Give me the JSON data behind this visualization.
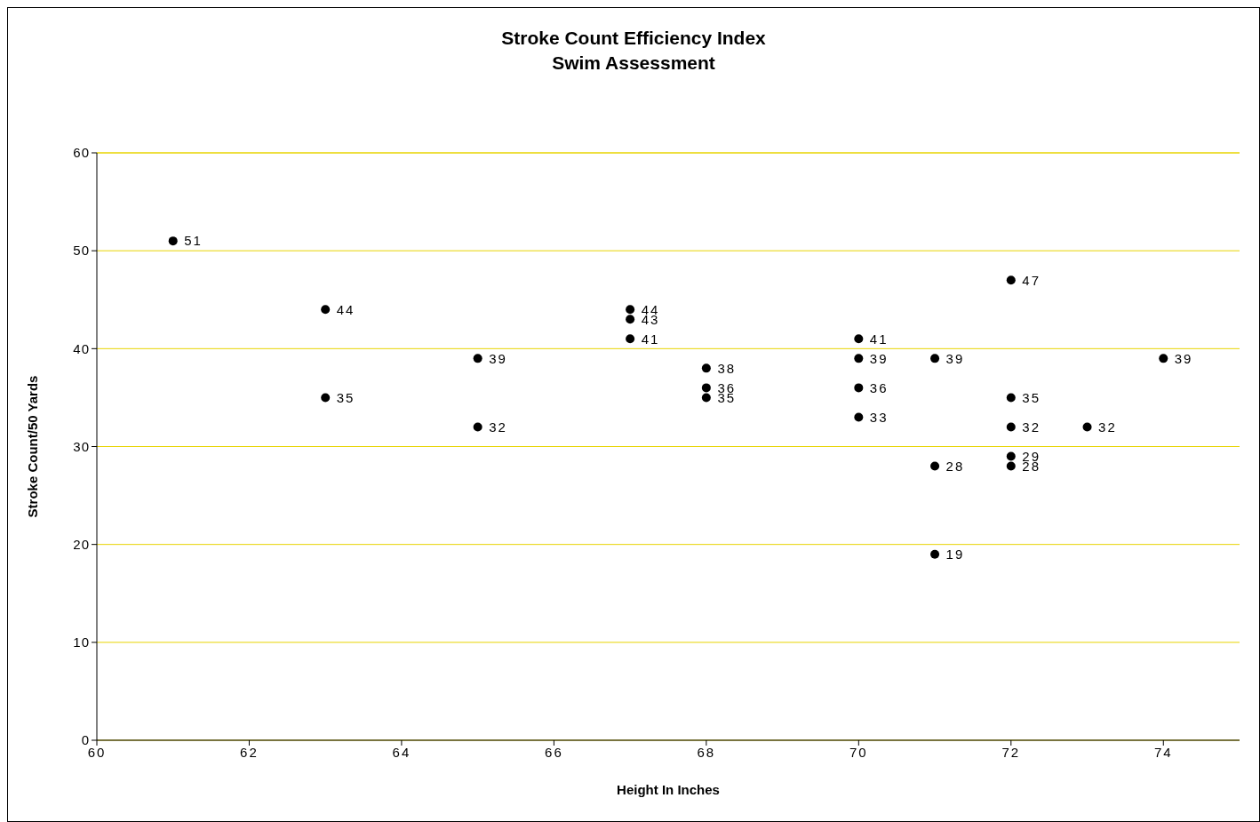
{
  "chart_data": {
    "type": "scatter",
    "title": "Stroke Count Efficiency Index",
    "subtitle": "Swim Assessment",
    "xlabel": "Height In Inches",
    "ylabel": "Stroke Count/50  Yards",
    "x": [
      61,
      63,
      63,
      65,
      65,
      67,
      67,
      67,
      68,
      68,
      68,
      70,
      70,
      70,
      70,
      71,
      71,
      71,
      72,
      72,
      72,
      72,
      72,
      73,
      74
    ],
    "series": [
      {
        "color": "#000000",
        "values": [
          51,
          44,
          35,
          39,
          32,
          44,
          43,
          41,
          38,
          36,
          35,
          41,
          39,
          36,
          33,
          39,
          28,
          19,
          47,
          35,
          32,
          29,
          28,
          32,
          39
        ]
      }
    ],
    "xlim": [
      60,
      75
    ],
    "xticks": [
      60,
      62,
      64,
      66,
      68,
      70,
      72,
      74
    ],
    "ylim": [
      0,
      60
    ],
    "yticks": [
      0,
      10,
      20,
      30,
      40,
      50,
      60
    ],
    "grid": "y",
    "marker": "circle",
    "data_labels": true,
    "legend": false
  }
}
